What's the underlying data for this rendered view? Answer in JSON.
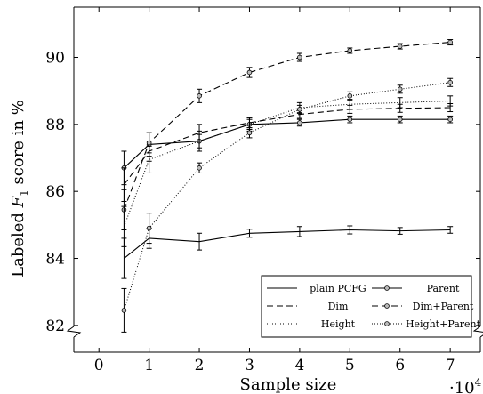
{
  "chart_data": {
    "type": "line",
    "xlabel": "Sample size",
    "ylabel_prefix": "Labeled ",
    "ylabel_var": "F",
    "ylabel_sub": "1",
    "ylabel_suffix": " score in %",
    "x_multiplier_label": "·10",
    "x_multiplier_exp": "4",
    "xlim": [
      -0.5,
      7.6
    ],
    "ylim": [
      81.2,
      91.5
    ],
    "x_ticks": [
      0,
      1,
      2,
      3,
      4,
      5,
      6,
      7
    ],
    "y_ticks": [
      82,
      84,
      86,
      88,
      90
    ],
    "y_axis_break": true,
    "legend_position": "bottom-right",
    "legend_columns": 2,
    "x": [
      0.5,
      1,
      2,
      3,
      4,
      5,
      6,
      7
    ],
    "series": [
      {
        "name": "plain PCFG",
        "style": "solid",
        "marker": false,
        "values": [
          84.0,
          84.6,
          84.5,
          84.75,
          84.8,
          84.85,
          84.82,
          84.85
        ],
        "errors": [
          0.6,
          0.3,
          0.25,
          0.12,
          0.15,
          0.12,
          0.1,
          0.1
        ]
      },
      {
        "name": "Parent",
        "style": "solid",
        "marker": true,
        "values": [
          86.7,
          87.4,
          87.5,
          88.0,
          88.05,
          88.15,
          88.15,
          88.15
        ],
        "errors": [
          0.5,
          0.35,
          0.2,
          0.15,
          0.1,
          0.1,
          0.1,
          0.1
        ]
      },
      {
        "name": "Dim",
        "style": "dashed",
        "marker": false,
        "values": [
          86.2,
          87.2,
          87.75,
          88.05,
          88.3,
          88.45,
          88.48,
          88.5
        ],
        "errors": [
          0.5,
          0.3,
          0.25,
          0.15,
          0.12,
          0.12,
          0.12,
          0.12
        ]
      },
      {
        "name": "Dim+Parent",
        "style": "dashed",
        "marker": true,
        "values": [
          85.45,
          87.45,
          88.85,
          89.55,
          90.0,
          90.2,
          90.33,
          90.45
        ],
        "errors": [
          0.6,
          0.3,
          0.2,
          0.15,
          0.12,
          0.08,
          0.08,
          0.08
        ]
      },
      {
        "name": "Height",
        "style": "dotted",
        "marker": false,
        "values": [
          84.95,
          86.95,
          87.5,
          88.0,
          88.5,
          88.6,
          88.65,
          88.7
        ],
        "errors": [
          0.6,
          0.4,
          0.3,
          0.2,
          0.15,
          0.15,
          0.15,
          0.15
        ]
      },
      {
        "name": "Height+Parent",
        "style": "dotted",
        "marker": true,
        "values": [
          82.45,
          84.9,
          86.7,
          87.75,
          88.45,
          88.85,
          89.05,
          89.25
        ],
        "errors": [
          0.65,
          0.45,
          0.15,
          0.15,
          0.12,
          0.12,
          0.12,
          0.12
        ]
      }
    ]
  }
}
